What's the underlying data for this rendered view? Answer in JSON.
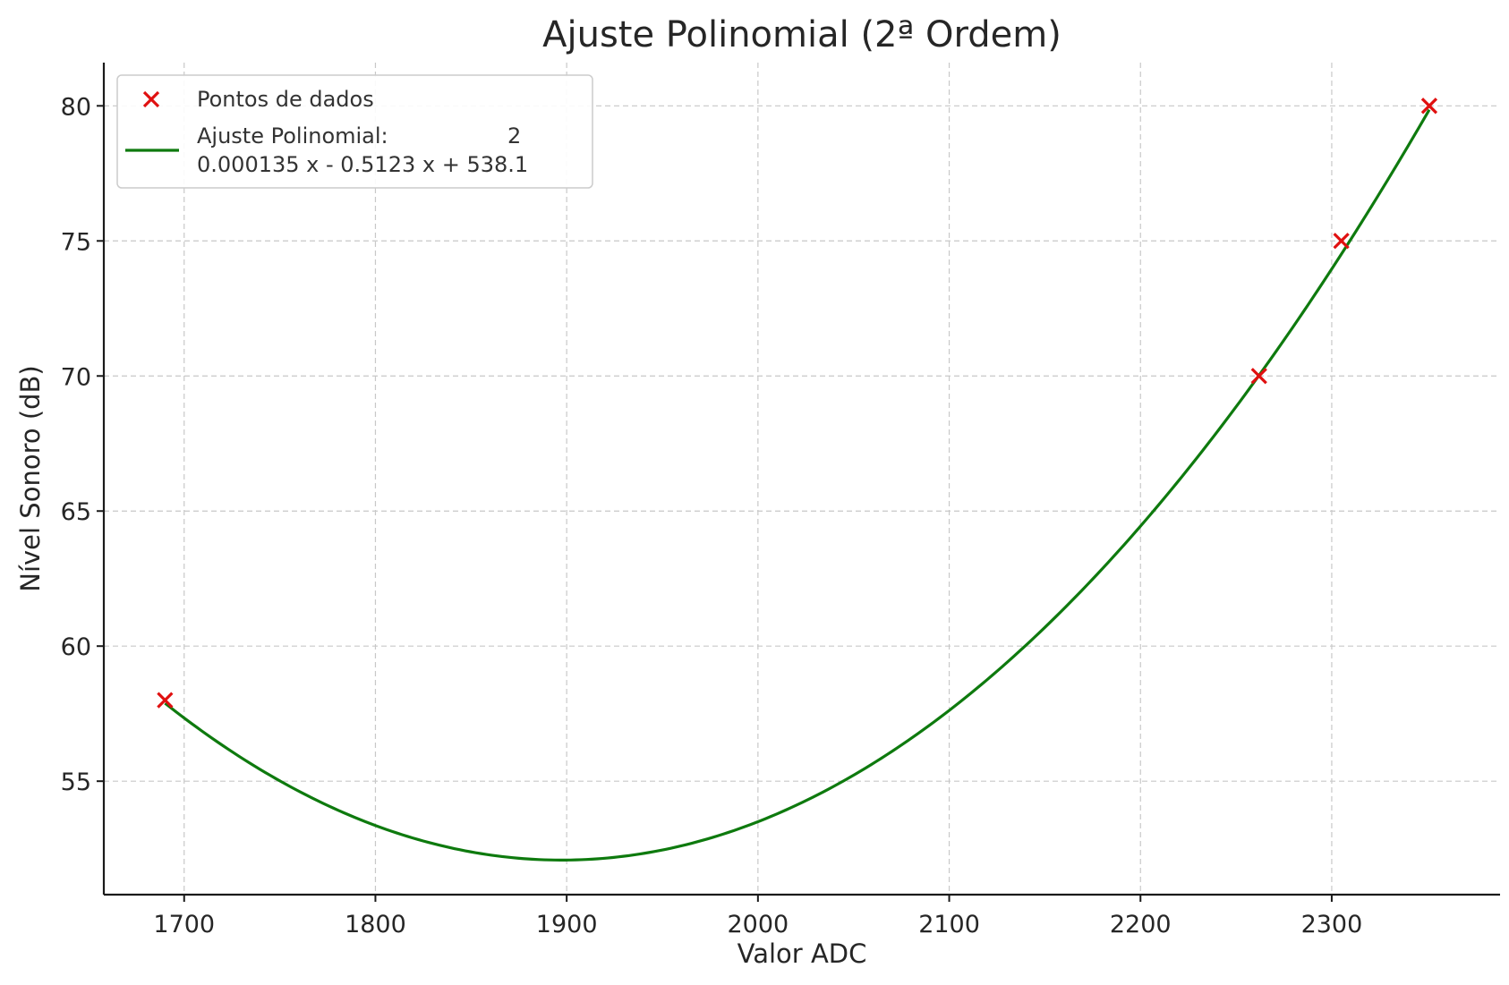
{
  "chart_data": {
    "type": "line",
    "title": "Ajuste Polinomial (2ª Ordem)",
    "xlabel": "Valor ADC",
    "ylabel": "Nível Sonoro (dB)",
    "xlim": [
      1658,
      2388
    ],
    "ylim": [
      50.8,
      81.6
    ],
    "xticks": [
      1700,
      1800,
      1900,
      2000,
      2100,
      2200,
      2300
    ],
    "yticks": [
      55,
      60,
      65,
      70,
      75,
      80
    ],
    "grid": true,
    "legend_position": "top-left",
    "series": [
      {
        "name": "Pontos de dados",
        "kind": "scatter",
        "marker": "x",
        "color": "#e01010",
        "x": [
          1690,
          2262,
          2305,
          2351
        ],
        "y": [
          58,
          70,
          75,
          80
        ]
      },
      {
        "name": "Ajuste Polinomial",
        "kind": "line",
        "color": "#0e7a0e",
        "coefficients": [
          0.000135,
          -0.5123,
          538.1
        ],
        "x_range": [
          1690,
          2351
        ],
        "legend_line1": "Ajuste Polinomial:",
        "legend_exponent": "2",
        "legend_line2": "0.000135 x - 0.5123 x + 538.1"
      }
    ]
  }
}
